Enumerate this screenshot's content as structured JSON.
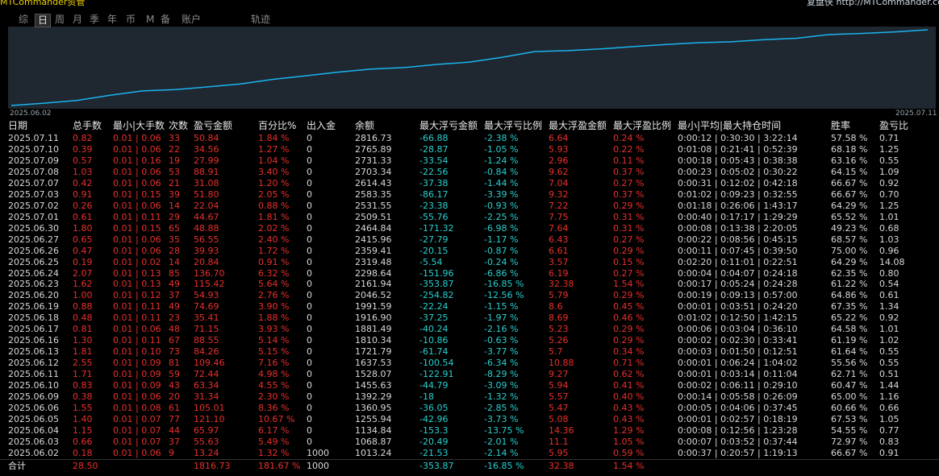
{
  "header": {
    "app": "MTCommander资管",
    "right": "复盘侠 http://MTCommander.com"
  },
  "tabs": [
    "综",
    "日",
    "周",
    "月",
    "季",
    "年",
    "币",
    "M",
    "备",
    "账户",
    "轨迹"
  ],
  "selected_tab": "日",
  "table": {
    "columns": [
      "日期",
      "总手数",
      "最小|大手数",
      "次数",
      "盈亏金额",
      "百分比%",
      "出入金",
      "余额",
      "最大浮亏金额",
      "最大浮亏比例",
      "最大浮盈金额",
      "最大浮盈比例",
      "最小|平均|最大持仓时间",
      "胜率",
      "盈亏比"
    ],
    "rows": [
      [
        "2025.07.11",
        "0.82",
        "0.01 | 0.06",
        "33",
        "50.84",
        "1.84 %",
        "0",
        "2816.73",
        "-66.88",
        "-2.38 %",
        "6.64",
        "0.24 %",
        "0:00:12 | 0:30:30 | 3:22:14",
        "57.58 %",
        "0.71"
      ],
      [
        "2025.07.10",
        "0.39",
        "0.01 | 0.06",
        "22",
        "34.56",
        "1.27 %",
        "0",
        "2765.89",
        "-28.87",
        "-1.05 %",
        "5.93",
        "0.22 %",
        "0:01:08 | 0:21:41 | 0:52:39",
        "68.18 %",
        "1.25"
      ],
      [
        "2025.07.09",
        "0.57",
        "0.01 | 0.16",
        "19",
        "27.99",
        "1.04 %",
        "0",
        "2731.33",
        "-33.54",
        "-1.24 %",
        "2.96",
        "0.11 %",
        "0:00:18 | 0:05:43 | 0:38:38",
        "63.16 %",
        "0.55"
      ],
      [
        "2025.07.08",
        "1.03",
        "0.01 | 0.06",
        "53",
        "88.91",
        "3.40 %",
        "0",
        "2703.34",
        "-22.56",
        "-0.84 %",
        "9.62",
        "0.37 %",
        "0:00:23 | 0:05:02 | 0:30:22",
        "64.15 %",
        "1.09"
      ],
      [
        "2025.07.07",
        "0.42",
        "0.01 | 0.06",
        "21",
        "31.08",
        "1.20 %",
        "0",
        "2614.43",
        "-37.38",
        "-1.44 %",
        "7.04",
        "0.27 %",
        "0:00:31 | 0:12:02 | 0:42:18",
        "66.67 %",
        "0.92"
      ],
      [
        "2025.07.03",
        "0.91",
        "0.01 | 0.15",
        "39",
        "51.80",
        "2.05 %",
        "0",
        "2583.35",
        "-86.17",
        "-3.39 %",
        "9.32",
        "0.37 %",
        "0:01:02 | 0:09:23 | 0:32:55",
        "66.67 %",
        "0.70"
      ],
      [
        "2025.07.02",
        "0.26",
        "0.01 | 0.06",
        "14",
        "22.04",
        "0.88 %",
        "0",
        "2531.55",
        "-23.38",
        "-0.93 %",
        "7.22",
        "0.29 %",
        "0:01:18 | 0:26:06 | 1:43:17",
        "64.29 %",
        "1.25"
      ],
      [
        "2025.07.01",
        "0.61",
        "0.01 | 0.11",
        "29",
        "44.67",
        "1.81 %",
        "0",
        "2509.51",
        "-55.76",
        "-2.25 %",
        "7.75",
        "0.31 %",
        "0:00:40 | 0:17:17 | 1:29:29",
        "65.52 %",
        "1.01"
      ],
      [
        "2025.06.30",
        "1.80",
        "0.01 | 0.15",
        "65",
        "48.88",
        "2.02 %",
        "0",
        "2464.84",
        "-171.32",
        "-6.98 %",
        "7.64",
        "0.31 %",
        "0:00:08 | 0:13:38 | 2:20:05",
        "49.23 %",
        "0.68"
      ],
      [
        "2025.06.27",
        "0.65",
        "0.01 | 0.06",
        "35",
        "56.55",
        "2.40 %",
        "0",
        "2415.96",
        "-27.79",
        "-1.17 %",
        "6.43",
        "0.27 %",
        "0:00:22 | 0:08:56 | 0:45:15",
        "68.57 %",
        "1.03"
      ],
      [
        "2025.06.26",
        "0.47",
        "0.01 | 0.06",
        "28",
        "39.93",
        "1.72 %",
        "0",
        "2359.41",
        "-20.15",
        "-0.87 %",
        "6.61",
        "0.29 %",
        "0:00:11 | 0:07:45 | 0:39:50",
        "75.00 %",
        "0.96"
      ],
      [
        "2025.06.25",
        "0.19",
        "0.01 | 0.02",
        "14",
        "20.84",
        "0.91 %",
        "0",
        "2319.48",
        "-5.54",
        "-0.24 %",
        "3.57",
        "0.15 %",
        "0:02:20 | 0:11:01 | 0:22:51",
        "64.29 %",
        "14.08"
      ],
      [
        "2025.06.24",
        "2.07",
        "0.01 | 0.13",
        "85",
        "136.70",
        "6.32 %",
        "0",
        "2298.64",
        "-151.96",
        "-6.86 %",
        "6.19",
        "0.27 %",
        "0:00:04 | 0:04:07 | 0:24:18",
        "62.35 %",
        "0.80"
      ],
      [
        "2025.06.23",
        "1.62",
        "0.01 | 0.13",
        "49",
        "115.42",
        "5.64 %",
        "0",
        "2161.94",
        "-353.87",
        "-16.85 %",
        "32.38",
        "1.54 %",
        "0:00:17 | 0:05:24 | 0:24:28",
        "61.22 %",
        "0.54"
      ],
      [
        "2025.06.20",
        "1.00",
        "0.01 | 0.12",
        "37",
        "54.93",
        "2.76 %",
        "0",
        "2046.52",
        "-254.82",
        "-12.56 %",
        "5.79",
        "0.29 %",
        "0:00:19 | 0:09:13 | 0:57:00",
        "64.86 %",
        "0.61"
      ],
      [
        "2025.06.19",
        "0.88",
        "0.01 | 0.11",
        "49",
        "74.69",
        "3.90 %",
        "0",
        "1991.59",
        "-22.24",
        "-1.15 %",
        "8.6",
        "0.45 %",
        "0:00:01 | 0:03:51 | 0:24:20",
        "67.35 %",
        "1.34"
      ],
      [
        "2025.06.18",
        "0.48",
        "0.01 | 0.11",
        "23",
        "35.41",
        "1.88 %",
        "0",
        "1916.90",
        "-37.25",
        "-1.97 %",
        "8.69",
        "0.46 %",
        "0:01:02 | 0:12:50 | 1:42:15",
        "65.22 %",
        "0.92"
      ],
      [
        "2025.06.17",
        "0.81",
        "0.01 | 0.06",
        "48",
        "71.15",
        "3.93 %",
        "0",
        "1881.49",
        "-40.24",
        "-2.16 %",
        "5.23",
        "0.29 %",
        "0:00:06 | 0:03:04 | 0:36:10",
        "64.58 %",
        "1.01"
      ],
      [
        "2025.06.16",
        "1.30",
        "0.01 | 0.11",
        "67",
        "88.55",
        "5.14 %",
        "0",
        "1810.34",
        "-10.86",
        "-0.63 %",
        "5.26",
        "0.29 %",
        "0:00:02 | 0:02:30 | 0:33:41",
        "61.19 %",
        "1.02"
      ],
      [
        "2025.06.13",
        "1.81",
        "0.01 | 0.10",
        "73",
        "84.26",
        "5.15 %",
        "0",
        "1721.79",
        "-61.74",
        "-3.77 %",
        "5.7",
        "0.34 %",
        "0:00:03 | 0:01:50 | 0:12:51",
        "61.64 %",
        "0.55"
      ],
      [
        "2025.06.12",
        "2.55",
        "0.01 | 0.09",
        "81",
        "109.46",
        "7.16 %",
        "0",
        "1637.53",
        "-100.54",
        "-6.34 %",
        "10.88",
        "0.71 %",
        "0:00:01 | 0:06:24 | 1:04:02",
        "55.56 %",
        "0.55"
      ],
      [
        "2025.06.11",
        "1.71",
        "0.01 | 0.09",
        "59",
        "72.44",
        "4.98 %",
        "0",
        "1528.07",
        "-122.91",
        "-8.29 %",
        "9.27",
        "0.62 %",
        "0:00:01 | 0:03:14 | 0:11:04",
        "62.71 %",
        "0.51"
      ],
      [
        "2025.06.10",
        "0.83",
        "0.01 | 0.09",
        "43",
        "63.34",
        "4.55 %",
        "0",
        "1455.63",
        "-44.79",
        "-3.09 %",
        "5.94",
        "0.41 %",
        "0:00:02 | 0:06:11 | 0:29:10",
        "60.47 %",
        "1.44"
      ],
      [
        "2025.06.09",
        "0.38",
        "0.01 | 0.06",
        "20",
        "31.34",
        "2.30 %",
        "0",
        "1392.29",
        "-18",
        "-1.32 %",
        "5.57",
        "0.40 %",
        "0:00:14 | 0:05:58 | 0:26:09",
        "65.00 %",
        "1.16"
      ],
      [
        "2025.06.06",
        "1.55",
        "0.01 | 0.08",
        "61",
        "105.01",
        "8.36 %",
        "0",
        "1360.95",
        "-36.05",
        "-2.85 %",
        "5.47",
        "0.43 %",
        "0:00:05 | 0:04:06 | 0:37:45",
        "60.66 %",
        "0.66"
      ],
      [
        "2025.06.05",
        "1.40",
        "0.01 | 0.07",
        "77",
        "121.10",
        "10.67 %",
        "0",
        "1255.94",
        "-42.96",
        "-3.73 %",
        "5.08",
        "0.43 %",
        "0:00:01 | 0:02:57 | 0:18:19",
        "67.53 %",
        "1.05"
      ],
      [
        "2025.06.04",
        "1.15",
        "0.01 | 0.07",
        "44",
        "65.97",
        "6.17 %",
        "0",
        "1134.84",
        "-153.3",
        "-13.75 %",
        "14.36",
        "1.29 %",
        "0:00:08 | 0:12:56 | 1:23:28",
        "54.55 %",
        "0.77"
      ],
      [
        "2025.06.03",
        "0.66",
        "0.01 | 0.07",
        "37",
        "55.63",
        "5.49 %",
        "0",
        "1068.87",
        "-20.49",
        "-2.01 %",
        "11.1",
        "1.05 %",
        "0:00:07 | 0:03:52 | 0:37:44",
        "72.97 %",
        "0.83"
      ],
      [
        "2025.06.02",
        "0.18",
        "0.01 | 0.06",
        "9",
        "13.24",
        "1.32 %",
        "1000",
        "1013.24",
        "-21.53",
        "-2.14 %",
        "5.95",
        "0.59 %",
        "0:00:37 | 0:20:57 | 1:19:13",
        "66.67 %",
        "0.91"
      ]
    ],
    "total": [
      "合计",
      "28.50",
      null,
      null,
      "1816.73",
      "181.67 %",
      "1000",
      null,
      "-353.87",
      "-16.85 %",
      "32.38",
      "1.54 %",
      null,
      null,
      null
    ]
  }
}
